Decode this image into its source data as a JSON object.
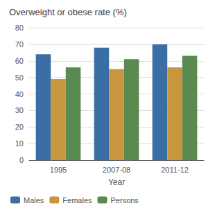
{
  "chart_data": {
    "type": "bar",
    "title": "Overweight or obese rate (%)",
    "xlabel": "Year",
    "categories": [
      "1995",
      "2007-08",
      "2011-12"
    ],
    "series": [
      {
        "name": "Males",
        "color": "#3A6EA5",
        "values": [
          64,
          68,
          70
        ]
      },
      {
        "name": "Females",
        "color": "#C8963E",
        "values": [
          49,
          55,
          56
        ]
      },
      {
        "name": "Persons",
        "color": "#5A8A50",
        "values": [
          56,
          61,
          63
        ]
      }
    ],
    "ylim": [
      0,
      80
    ],
    "yticks": [
      0,
      10,
      20,
      30,
      40,
      50,
      60,
      70,
      80
    ],
    "grid": true,
    "legend": "lower left"
  }
}
